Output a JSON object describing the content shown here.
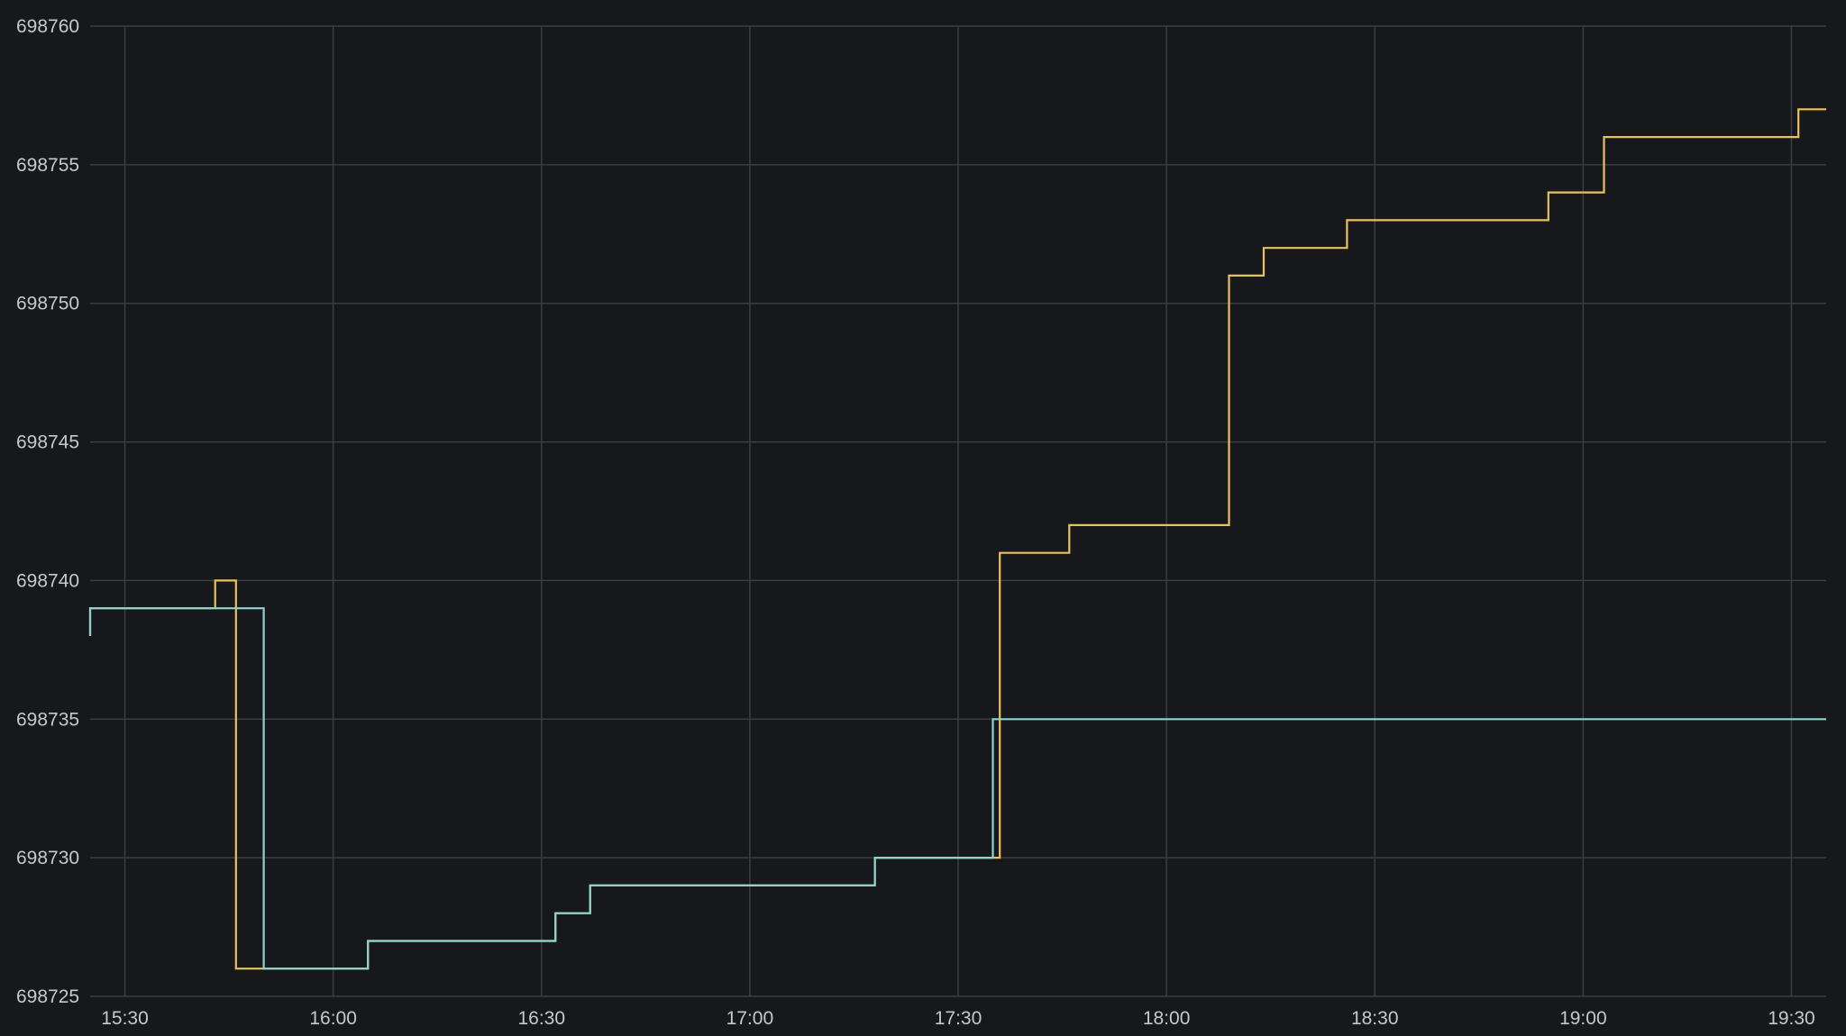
{
  "chart_data": {
    "type": "line",
    "title": "",
    "xlabel": "",
    "ylabel": "",
    "x_axis": {
      "min": "15:25",
      "max": "19:35",
      "ticks": [
        "15:30",
        "16:00",
        "16:30",
        "17:00",
        "17:30",
        "18:00",
        "18:30",
        "19:00",
        "19:30"
      ]
    },
    "y_axis": {
      "min": 698725,
      "max": 698760,
      "ticks": [
        698725,
        698730,
        698735,
        698740,
        698745,
        698750,
        698755,
        698760
      ]
    },
    "grid": true,
    "legend": "none",
    "background": "#17181c",
    "series": [
      {
        "color": "#e8c25a",
        "points": [
          [
            "15:25",
            698738
          ],
          [
            "15:25",
            698739
          ],
          [
            "15:43",
            698739
          ],
          [
            "15:43",
            698740
          ],
          [
            "15:46",
            698740
          ],
          [
            "15:46",
            698726
          ],
          [
            "16:05",
            698726
          ],
          [
            "16:05",
            698727
          ],
          [
            "16:32",
            698727
          ],
          [
            "16:32",
            698728
          ],
          [
            "16:37",
            698728
          ],
          [
            "16:37",
            698729
          ],
          [
            "17:18",
            698729
          ],
          [
            "17:18",
            698730
          ],
          [
            "17:36",
            698730
          ],
          [
            "17:36",
            698741
          ],
          [
            "17:46",
            698741
          ],
          [
            "17:46",
            698742
          ],
          [
            "18:09",
            698742
          ],
          [
            "18:09",
            698751
          ],
          [
            "18:14",
            698751
          ],
          [
            "18:14",
            698752
          ],
          [
            "18:26",
            698752
          ],
          [
            "18:26",
            698753
          ],
          [
            "18:55",
            698753
          ],
          [
            "18:55",
            698754
          ],
          [
            "19:03",
            698754
          ],
          [
            "19:03",
            698756
          ],
          [
            "19:31",
            698756
          ],
          [
            "19:31",
            698757
          ],
          [
            "19:35",
            698757
          ]
        ]
      },
      {
        "color": "#8fd3d0",
        "points": [
          [
            "15:25",
            698738
          ],
          [
            "15:25",
            698739
          ],
          [
            "15:50",
            698739
          ],
          [
            "15:50",
            698726
          ],
          [
            "16:05",
            698726
          ],
          [
            "16:05",
            698727
          ],
          [
            "16:32",
            698727
          ],
          [
            "16:32",
            698728
          ],
          [
            "16:37",
            698728
          ],
          [
            "16:37",
            698729
          ],
          [
            "17:18",
            698729
          ],
          [
            "17:18",
            698730
          ],
          [
            "17:35",
            698730
          ],
          [
            "17:35",
            698735
          ],
          [
            "19:35",
            698735
          ]
        ]
      }
    ]
  }
}
